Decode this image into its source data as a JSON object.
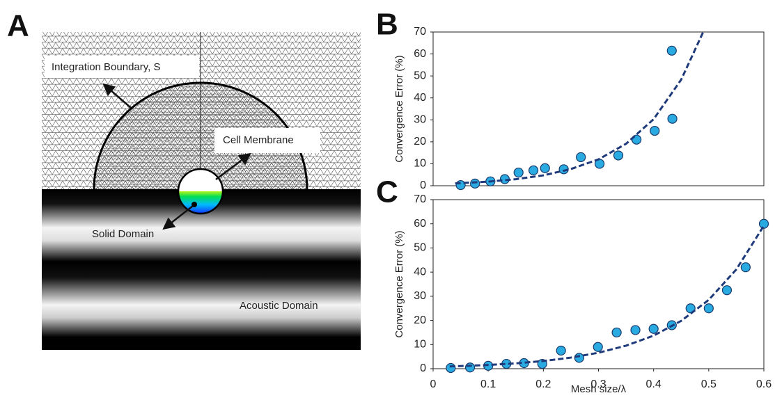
{
  "panel_a": {
    "label": "A",
    "integration_boundary": "Integration Boundary, S",
    "cell_membrane": "Cell Membrane",
    "solid_domain": "Solid Domain",
    "acoustic_domain": "Acoustic Domain"
  },
  "chart_data": [
    {
      "type": "scatter",
      "panel_label": "B",
      "y_label": "Convergence Error (%)",
      "xlim": [
        0,
        0.6
      ],
      "ylim": [
        0,
        70
      ],
      "yticks": [
        0,
        10,
        20,
        30,
        40,
        50,
        60,
        70
      ],
      "series": [
        {
          "color": "#29abe2",
          "x": [
            0.05,
            0.076,
            0.104,
            0.13,
            0.155,
            0.182,
            0.203,
            0.237,
            0.268,
            0.302,
            0.336,
            0.369,
            0.402,
            0.434,
            0.433
          ],
          "values": [
            0.3,
            1,
            2,
            3,
            6,
            7,
            8,
            7.5,
            13,
            10,
            13.8,
            21,
            25,
            30.5,
            61.5
          ]
        },
        {
          "type": "line",
          "color": "#1f3a7a",
          "x": [
            0.04,
            0.1,
            0.15,
            0.2,
            0.25,
            0.3,
            0.35,
            0.4,
            0.45,
            0.49
          ],
          "values": [
            1.07,
            1.87,
            2.98,
            4.73,
            7.6,
            12.0,
            19.1,
            30.3,
            48.3,
            70
          ]
        }
      ]
    },
    {
      "type": "scatter",
      "panel_label": "C",
      "y_label": "Convergence Error (%)",
      "x_label": "Mesh size/λ",
      "xlim": [
        0,
        0.6
      ],
      "xticks": [
        0,
        0.1,
        0.2,
        0.3,
        0.4,
        0.5,
        0.6
      ],
      "ylim": [
        0,
        70
      ],
      "yticks": [
        0,
        10,
        20,
        30,
        40,
        50,
        60,
        70
      ],
      "series": [
        {
          "color": "#29abe2",
          "x": [
            0.032,
            0.067,
            0.1,
            0.133,
            0.165,
            0.198,
            0.232,
            0.265,
            0.299,
            0.333,
            0.367,
            0.4,
            0.433,
            0.467,
            0.5,
            0.533,
            0.567,
            0.6
          ],
          "values": [
            0.3,
            0.5,
            1.2,
            2,
            2.3,
            2,
            7.5,
            4.5,
            9,
            15,
            16,
            16.5,
            18,
            25,
            25,
            32.5,
            42,
            60
          ]
        },
        {
          "type": "line",
          "color": "#1f3a7a",
          "x": [
            0.03,
            0.1,
            0.15,
            0.2,
            0.25,
            0.3,
            0.35,
            0.4,
            0.45,
            0.5,
            0.55,
            0.6
          ],
          "values": [
            0.92,
            1.54,
            2.21,
            3.19,
            4.59,
            6.61,
            9.53,
            13.7,
            19.8,
            28.5,
            41.1,
            59.2
          ]
        }
      ]
    }
  ]
}
